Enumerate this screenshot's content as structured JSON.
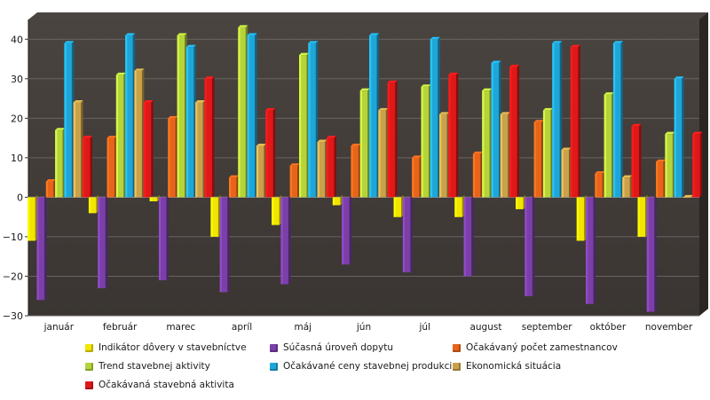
{
  "chart_data": {
    "type": "bar",
    "categories": [
      "január",
      "február",
      "marec",
      "apríl",
      "máj",
      "jún",
      "júl",
      "august",
      "september",
      "október",
      "november"
    ],
    "ylim": [
      -30,
      45
    ],
    "yticks": [
      -30,
      -20,
      -10,
      0,
      10,
      20,
      30,
      40
    ],
    "series": [
      {
        "name": "Indikátor dôvery v stavebníctve",
        "color": "#f2e600",
        "values": [
          -11,
          -4,
          -1,
          -10,
          -7,
          -2,
          -5,
          -5,
          -3,
          -11,
          -10
        ]
      },
      {
        "name": "Súčasná úroveň dopytu",
        "color": "#7b3fa8",
        "values": [
          -26,
          -23,
          -21,
          -24,
          -22,
          -17,
          -19,
          -20,
          -25,
          -27,
          -29
        ]
      },
      {
        "name": "Očakávaný počet zamestnancov",
        "color": "#e8641a",
        "values": [
          4,
          15,
          20,
          5,
          8,
          13,
          10,
          11,
          19,
          6,
          9
        ]
      },
      {
        "name": "Trend stavebnej aktivity",
        "color": "#b5d43a",
        "values": [
          17,
          31,
          41,
          43,
          36,
          27,
          28,
          27,
          22,
          26,
          16
        ]
      },
      {
        "name": "Očakávané ceny stavebnej produkcie",
        "color": "#1fa6d8",
        "values": [
          39,
          41,
          38,
          41,
          39,
          41,
          40,
          34,
          39,
          39,
          30
        ]
      },
      {
        "name": "Ekonomická situácia",
        "color": "#c9a24a",
        "values": [
          24,
          32,
          24,
          13,
          14,
          22,
          21,
          21,
          12,
          5,
          0
        ]
      },
      {
        "name": "Očakávaná stavebná aktivita",
        "color": "#e01818",
        "values": [
          15,
          24,
          30,
          22,
          15,
          29,
          31,
          33,
          38,
          18,
          16
        ]
      }
    ]
  }
}
